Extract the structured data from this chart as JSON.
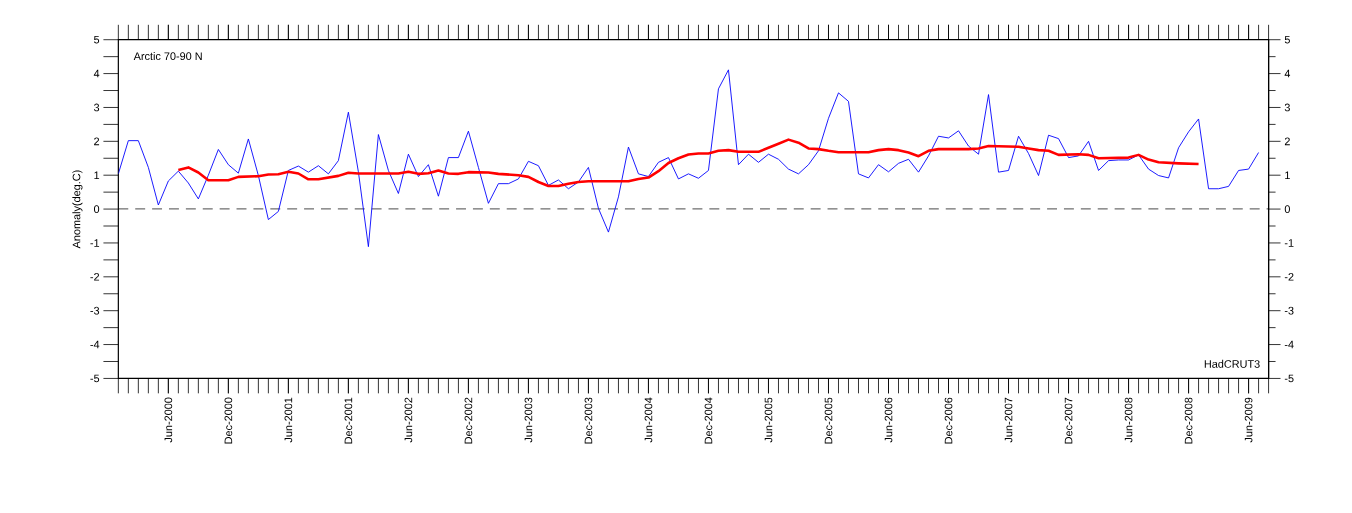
{
  "chart_data": {
    "type": "line",
    "ylabel": "Anomaly(deg.C)",
    "annotations": [
      "Arctic 70-90 N",
      "HadCRUT3"
    ],
    "x": [
      "2000-01",
      "2000-02",
      "2000-03",
      "2000-04",
      "2000-05",
      "2000-06",
      "2000-07",
      "2000-08",
      "2000-09",
      "2000-10",
      "2000-11",
      "2000-12",
      "2001-01",
      "2001-02",
      "2001-03",
      "2001-04",
      "2001-05",
      "2001-06",
      "2001-07",
      "2001-08",
      "2001-09",
      "2001-10",
      "2001-11",
      "2001-12",
      "2002-01",
      "2002-02",
      "2002-03",
      "2002-04",
      "2002-05",
      "2002-06",
      "2002-07",
      "2002-08",
      "2002-09",
      "2002-10",
      "2002-11",
      "2002-12",
      "2003-01",
      "2003-02",
      "2003-03",
      "2003-04",
      "2003-05",
      "2003-06",
      "2003-07",
      "2003-08",
      "2003-09",
      "2003-10",
      "2003-11",
      "2003-12",
      "2004-01",
      "2004-02",
      "2004-03",
      "2004-04",
      "2004-05",
      "2004-06",
      "2004-07",
      "2004-08",
      "2004-09",
      "2004-10",
      "2004-11",
      "2004-12",
      "2005-01",
      "2005-02",
      "2005-03",
      "2005-04",
      "2005-05",
      "2005-06",
      "2005-07",
      "2005-08",
      "2005-09",
      "2005-10",
      "2005-11",
      "2005-12",
      "2006-01",
      "2006-02",
      "2006-03",
      "2006-04",
      "2006-05",
      "2006-06",
      "2006-07",
      "2006-08",
      "2006-09",
      "2006-10",
      "2006-11",
      "2006-12",
      "2007-01",
      "2007-02",
      "2007-03",
      "2007-04",
      "2007-05",
      "2007-06",
      "2007-07",
      "2007-08",
      "2007-09",
      "2007-10",
      "2007-11",
      "2007-12",
      "2008-01",
      "2008-02",
      "2008-03",
      "2008-04",
      "2008-05",
      "2008-06",
      "2008-07",
      "2008-08",
      "2008-09",
      "2008-10",
      "2008-11",
      "2008-12",
      "2009-01",
      "2009-02",
      "2009-03",
      "2009-04",
      "2009-05",
      "2009-06",
      "2009-07"
    ],
    "series": [
      {
        "color": "#0000ff",
        "values": [
          1.04,
          2.02,
          2.02,
          1.23,
          0.12,
          0.83,
          1.12,
          0.77,
          0.3,
          1.0,
          1.76,
          1.31,
          1.06,
          2.07,
          0.99,
          -0.31,
          -0.07,
          1.14,
          1.27,
          1.09,
          1.28,
          1.04,
          1.43,
          2.86,
          1.1,
          -1.11,
          2.2,
          1.14,
          0.46,
          1.62,
          0.96,
          1.31,
          0.38,
          1.52,
          1.52,
          2.3,
          1.23,
          0.17,
          0.75,
          0.75,
          0.89,
          1.41,
          1.28,
          0.7,
          0.86,
          0.6,
          0.8,
          1.23,
          0.02,
          -0.68,
          0.36,
          1.83,
          1.04,
          0.96,
          1.38,
          1.52,
          0.89,
          1.04,
          0.91,
          1.14,
          3.55,
          4.11,
          1.31,
          1.62,
          1.38,
          1.62,
          1.47,
          1.18,
          1.04,
          1.31,
          1.72,
          2.68,
          3.43,
          3.18,
          1.04,
          0.92,
          1.31,
          1.1,
          1.35,
          1.47,
          1.09,
          1.57,
          2.15,
          2.1,
          2.31,
          1.86,
          1.62,
          3.38,
          1.09,
          1.14,
          2.15,
          1.64,
          0.99,
          2.18,
          2.08,
          1.52,
          1.57,
          2.0,
          1.14,
          1.43,
          1.45,
          1.45,
          1.6,
          1.18,
          0.99,
          0.92,
          1.81,
          2.28,
          2.66,
          0.6,
          0.6,
          0.67,
          1.14,
          1.18,
          1.67
        ]
      },
      {
        "color": "#ff0000",
        "x": [
          "2000-07",
          "2000-08",
          "2000-09",
          "2000-10",
          "2000-12",
          "2001-01",
          "2001-03",
          "2001-04",
          "2001-05",
          "2001-06",
          "2001-07",
          "2001-08",
          "2001-09",
          "2001-11",
          "2001-12",
          "2002-01",
          "2002-05",
          "2002-06",
          "2002-07",
          "2002-08",
          "2002-09",
          "2002-10",
          "2002-11",
          "2002-12",
          "2003-02",
          "2003-03",
          "2003-05",
          "2003-06",
          "2003-07",
          "2003-08",
          "2003-09",
          "2003-10",
          "2003-11",
          "2003-12",
          "2004-04",
          "2004-05",
          "2004-06",
          "2004-07",
          "2004-08",
          "2004-09",
          "2004-10",
          "2004-11",
          "2004-12",
          "2005-01",
          "2005-02",
          "2005-03",
          "2005-05",
          "2005-06",
          "2005-07",
          "2005-08",
          "2005-09",
          "2005-10",
          "2005-11",
          "2005-12",
          "2006-01",
          "2006-04",
          "2006-05",
          "2006-06",
          "2006-07",
          "2006-08",
          "2006-09",
          "2006-10",
          "2006-11",
          "2007-02",
          "2007-03",
          "2007-04",
          "2007-07",
          "2007-08",
          "2007-09",
          "2007-10",
          "2007-11",
          "2008-01",
          "2008-02",
          "2008-03",
          "2008-06",
          "2008-07",
          "2008-08",
          "2008-09",
          "2008-11",
          "2009-01"
        ],
        "values": [
          1.15,
          1.23,
          1.08,
          0.85,
          0.85,
          0.95,
          0.97,
          1.02,
          1.03,
          1.1,
          1.05,
          0.88,
          0.88,
          0.98,
          1.07,
          1.05,
          1.05,
          1.1,
          1.04,
          1.06,
          1.14,
          1.05,
          1.04,
          1.09,
          1.08,
          1.04,
          1.0,
          0.95,
          0.8,
          0.68,
          0.68,
          0.75,
          0.8,
          0.82,
          0.82,
          0.89,
          0.93,
          1.12,
          1.36,
          1.5,
          1.61,
          1.64,
          1.64,
          1.72,
          1.74,
          1.69,
          1.69,
          1.81,
          1.93,
          2.05,
          1.96,
          1.79,
          1.77,
          1.72,
          1.68,
          1.68,
          1.74,
          1.77,
          1.74,
          1.67,
          1.56,
          1.72,
          1.77,
          1.77,
          1.79,
          1.86,
          1.84,
          1.79,
          1.74,
          1.72,
          1.6,
          1.62,
          1.6,
          1.5,
          1.52,
          1.6,
          1.46,
          1.38,
          1.35,
          1.33
        ]
      }
    ],
    "xlim": [
      "2000-01",
      "2009-08"
    ],
    "xticks": [
      {
        "value": "2000-06",
        "label": "Jun-2000"
      },
      {
        "value": "2000-12",
        "label": "Dec-2000"
      },
      {
        "value": "2001-06",
        "label": "Jun-2001"
      },
      {
        "value": "2001-12",
        "label": "Dec-2001"
      },
      {
        "value": "2002-06",
        "label": "Jun-2002"
      },
      {
        "value": "2002-12",
        "label": "Dec-2002"
      },
      {
        "value": "2003-06",
        "label": "Jun-2003"
      },
      {
        "value": "2003-12",
        "label": "Dec-2003"
      },
      {
        "value": "2004-06",
        "label": "Jun-2004"
      },
      {
        "value": "2004-12",
        "label": "Dec-2004"
      },
      {
        "value": "2005-06",
        "label": "Jun-2005"
      },
      {
        "value": "2005-12",
        "label": "Dec-2005"
      },
      {
        "value": "2006-06",
        "label": "Jun-2006"
      },
      {
        "value": "2006-12",
        "label": "Dec-2006"
      },
      {
        "value": "2007-06",
        "label": "Jun-2007"
      },
      {
        "value": "2007-12",
        "label": "Dec-2007"
      },
      {
        "value": "2008-06",
        "label": "Jun-2008"
      },
      {
        "value": "2008-12",
        "label": "Dec-2008"
      },
      {
        "value": "2009-06",
        "label": "Jun-2009"
      }
    ],
    "ylim": [
      -5,
      5
    ],
    "yticks": [
      -5,
      -4,
      -3,
      -2,
      -1,
      0,
      1,
      2,
      3,
      4,
      5
    ],
    "y2lim": [
      -5,
      5
    ],
    "y2ticks": [
      -5,
      -4,
      -3,
      -2,
      -1,
      0,
      1,
      2,
      3,
      4,
      5
    ],
    "ref_lines": [
      {
        "axis": "y",
        "value": 0,
        "color": "#000000",
        "line_style": "dashed"
      }
    ],
    "marker": "none",
    "line_style": "solid"
  }
}
